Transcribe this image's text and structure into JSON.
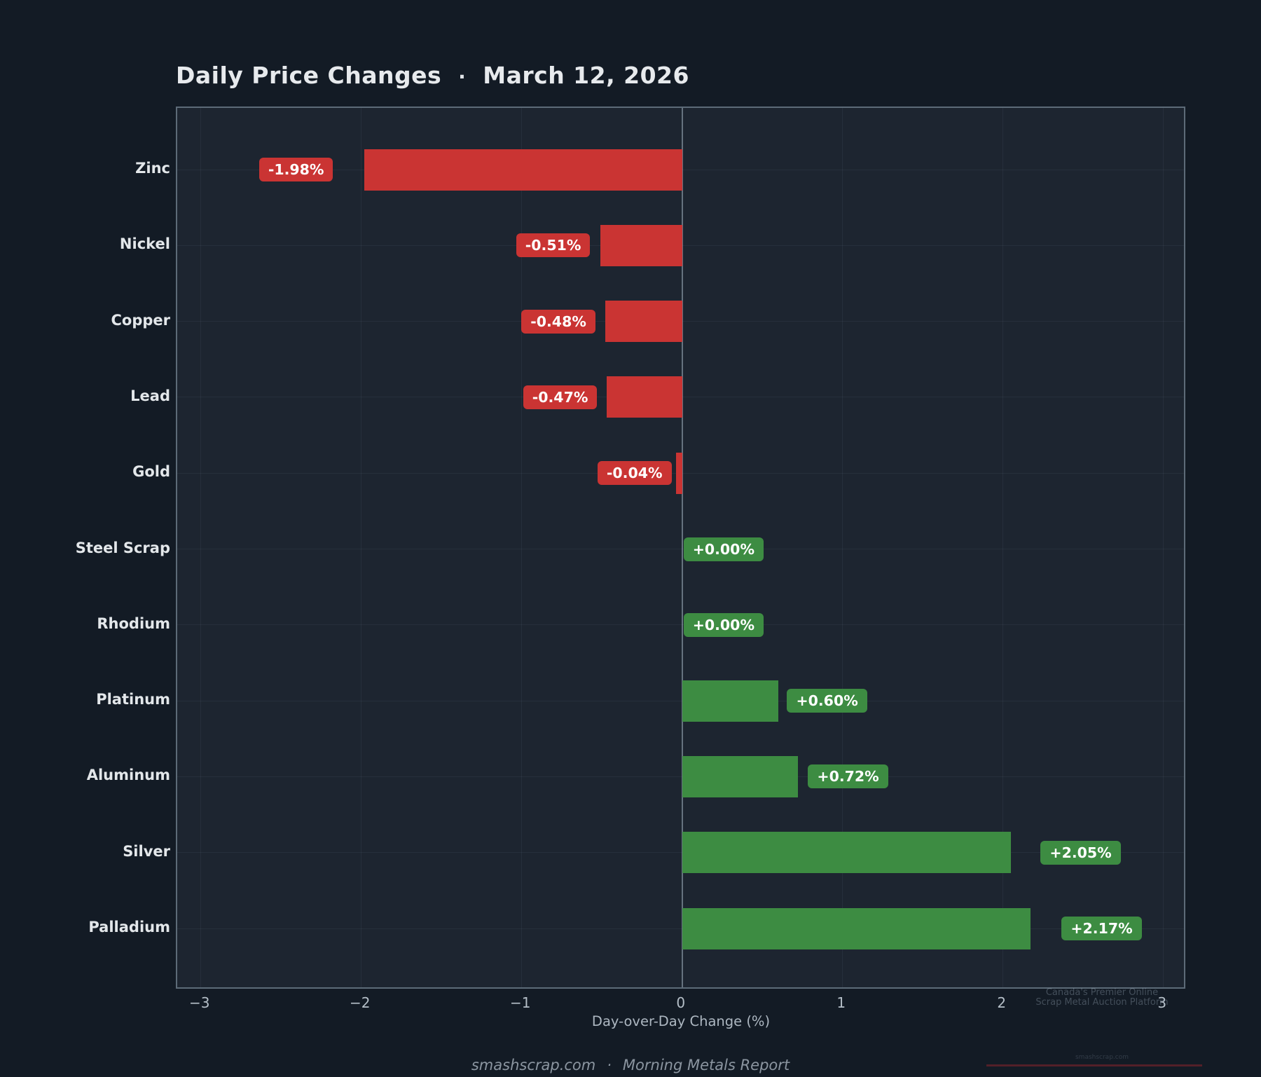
{
  "chart_data": {
    "type": "bar",
    "orientation": "horizontal",
    "title": "Daily Price Changes",
    "title_separator": "·",
    "subtitle_date": "March 12, 2026",
    "categories": [
      "Zinc",
      "Nickel",
      "Copper",
      "Lead",
      "Gold",
      "Steel Scrap",
      "Rhodium",
      "Platinum",
      "Aluminum",
      "Silver",
      "Palladium"
    ],
    "values": [
      -1.98,
      -0.51,
      -0.48,
      -0.47,
      -0.04,
      0.0,
      0.0,
      0.6,
      0.72,
      2.05,
      2.17
    ],
    "value_labels": [
      "-1.98%",
      "-0.51%",
      "-0.48%",
      "-0.47%",
      "-0.04%",
      "+0.00%",
      "+0.00%",
      "+0.60%",
      "+0.72%",
      "+2.05%",
      "+2.17%"
    ],
    "xlabel": "Day-over-Day Change (%)",
    "xlim": [
      -3.147,
      3.147
    ],
    "xticks": [
      -3,
      -2,
      -1,
      0,
      1,
      2,
      3
    ],
    "xtick_labels": [
      "−3",
      "−2",
      "−1",
      "0",
      "1",
      "2",
      "3"
    ],
    "grid": true,
    "legend": false,
    "colors": {
      "positive": "#3d8c42",
      "negative": "#ca3433",
      "plot_background": "#1d2530",
      "figure_background": "#131b25",
      "zero_line": "#66737f"
    }
  },
  "footer": {
    "site": "smashscrap.com",
    "separator": "·",
    "report": "Morning Metals Report"
  },
  "watermark": {
    "line1": "Canada's Premier Online",
    "line2": "Scrap Metal Auction Platform",
    "site": "smashscrap.com"
  }
}
